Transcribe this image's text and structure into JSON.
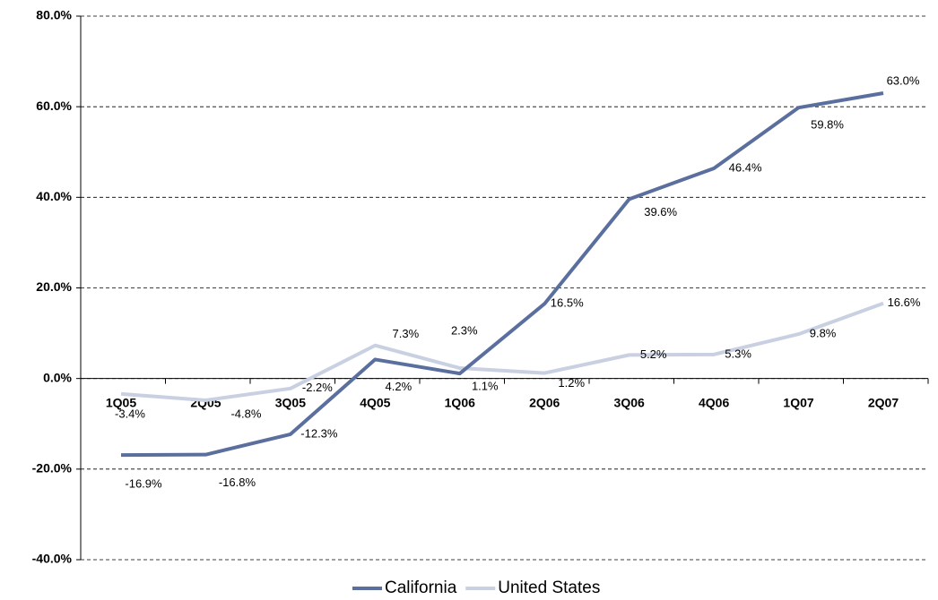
{
  "chart_data": {
    "type": "line",
    "categories": [
      "1Q05",
      "2Q05",
      "3Q05",
      "4Q05",
      "1Q06",
      "2Q06",
      "3Q06",
      "4Q06",
      "1Q07",
      "2Q07"
    ],
    "series": [
      {
        "name": "California",
        "color": "#5b6f9f",
        "values": [
          -16.9,
          -16.8,
          -12.3,
          4.2,
          1.1,
          16.5,
          39.6,
          46.4,
          59.8,
          63.0
        ],
        "value_labels": [
          "-16.9%",
          "-16.8%",
          "-12.3%",
          "4.2%",
          "1.1%",
          "16.5%",
          "39.6%",
          "46.4%",
          "59.8%",
          "63.0%"
        ]
      },
      {
        "name": "United States",
        "color": "#c9d0e2",
        "values": [
          -3.4,
          -4.8,
          -2.2,
          7.3,
          2.3,
          1.2,
          5.2,
          5.3,
          9.8,
          16.6
        ],
        "value_labels": [
          "-3.4%",
          "-4.8%",
          "-2.2%",
          "7.3%",
          "2.3%",
          "1.2%",
          "5.2%",
          "5.3%",
          "9.8%",
          "16.6%"
        ]
      }
    ],
    "ylim": [
      -40,
      80
    ],
    "yticks": [
      {
        "value": -40,
        "label": "-40.0%"
      },
      {
        "value": -20,
        "label": "-20.0%"
      },
      {
        "value": 0,
        "label": "0.0%"
      },
      {
        "value": 20,
        "label": "20.0%"
      },
      {
        "value": 40,
        "label": "40.0%"
      },
      {
        "value": 60,
        "label": "60.0%"
      },
      {
        "value": 80,
        "label": "80.0%"
      }
    ],
    "grid": true,
    "legend": "bottom"
  }
}
